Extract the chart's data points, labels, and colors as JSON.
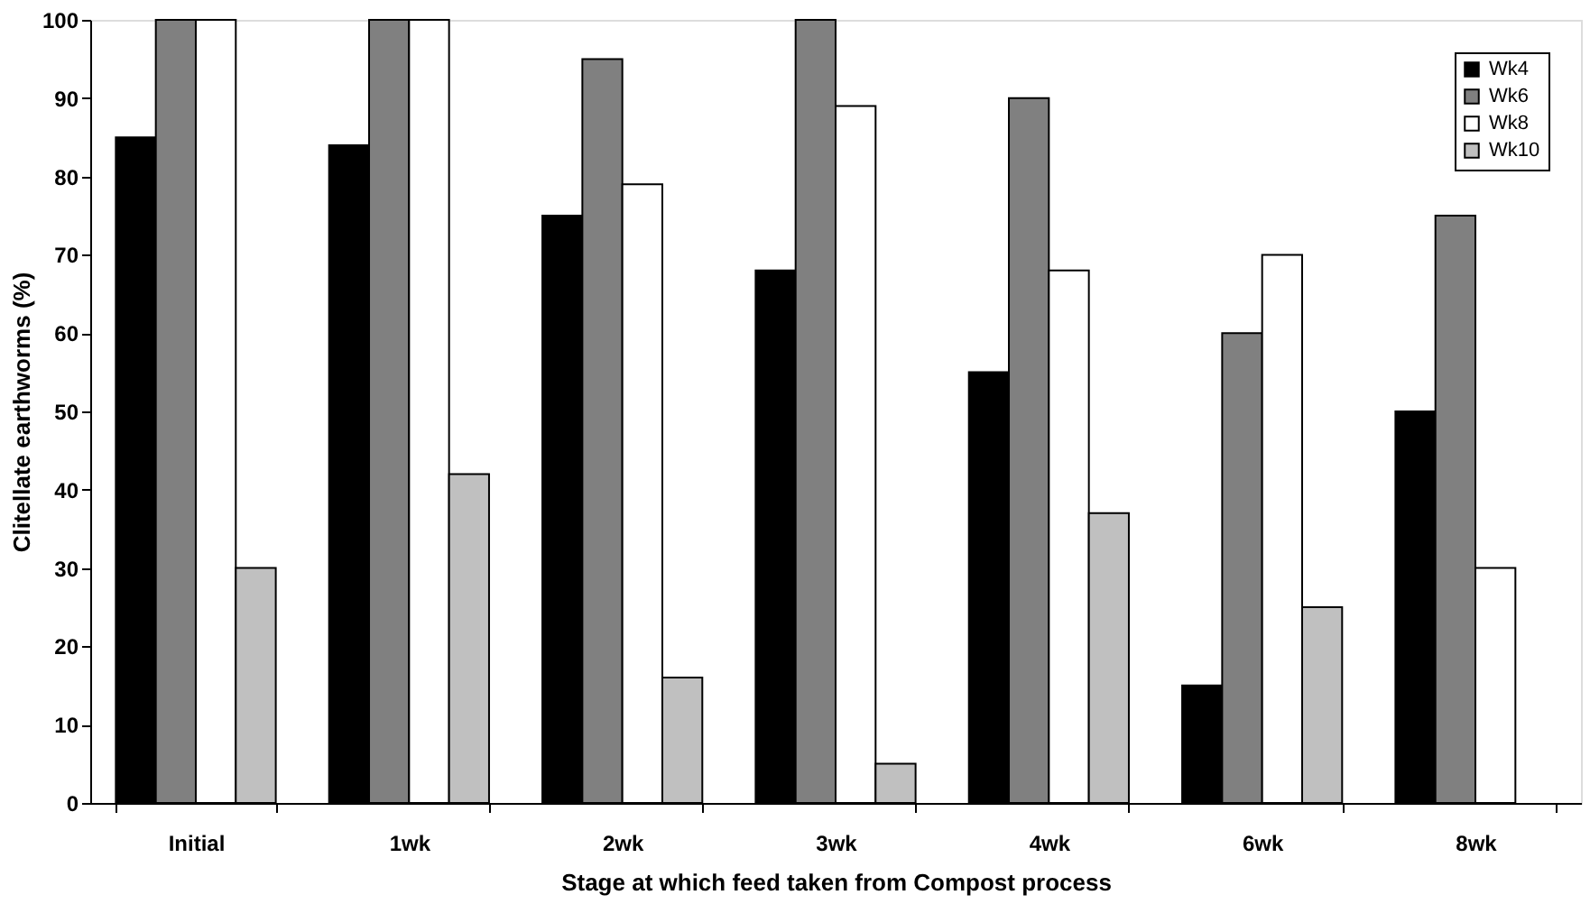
{
  "chart_data": {
    "type": "bar",
    "xlabel": "Stage at which feed taken from Compost process",
    "ylabel": "Clitellate earthworms (%)",
    "categories": [
      "Initial",
      "1wk",
      "2wk",
      "3wk",
      "4wk",
      "6wk",
      "8wk"
    ],
    "series": [
      {
        "name": "Wk4",
        "color": "#000000",
        "values": [
          85,
          84,
          75,
          68,
          55,
          15,
          50
        ]
      },
      {
        "name": "Wk6",
        "color": "#808080",
        "values": [
          100,
          100,
          95,
          100,
          90,
          60,
          75
        ]
      },
      {
        "name": "Wk8",
        "color": "#ffffff",
        "values": [
          100,
          100,
          79,
          89,
          68,
          70,
          30
        ]
      },
      {
        "name": "Wk10",
        "color": "#c0c0c0",
        "values": [
          30,
          42,
          16,
          5,
          37,
          25,
          null
        ]
      }
    ],
    "ylim": [
      0,
      100
    ],
    "yticks": [
      0,
      10,
      20,
      30,
      40,
      50,
      60,
      70,
      80,
      90,
      100
    ],
    "grid": false,
    "legend": "top right"
  }
}
